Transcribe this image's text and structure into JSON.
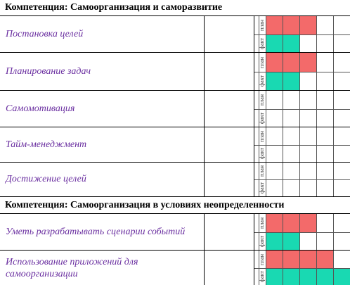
{
  "sections": [
    {
      "title": "Компетенция: Самоорганизация и саморазвитие",
      "skills": [
        {
          "name": "Постановка целей",
          "plan_level": 3,
          "fact_level": 2
        },
        {
          "name": "Планирование задач",
          "plan_level": 3,
          "fact_level": 2
        },
        {
          "name": "Самомотивация",
          "plan_level": 0,
          "fact_level": 0
        },
        {
          "name": "Тайм-менеджмент",
          "plan_level": 0,
          "fact_level": 0
        },
        {
          "name": "Достижение целей",
          "plan_level": 0,
          "fact_level": 0
        }
      ]
    },
    {
      "title": "Компетенция: Самоорганизация в условиях неопределенности",
      "skills": [
        {
          "name": "Уметь разрабатывать сценарии событий",
          "plan_level": 3,
          "fact_level": 2
        },
        {
          "name": "Использование приложений для самоорганизации",
          "plan_level": 4,
          "fact_level": 5
        }
      ]
    }
  ],
  "row_labels": {
    "plan": "план",
    "fact": "факт"
  },
  "colors": {
    "plan": "#f36a6a",
    "fact": "#19d9b2",
    "skill_text": "#6a2fa0"
  }
}
